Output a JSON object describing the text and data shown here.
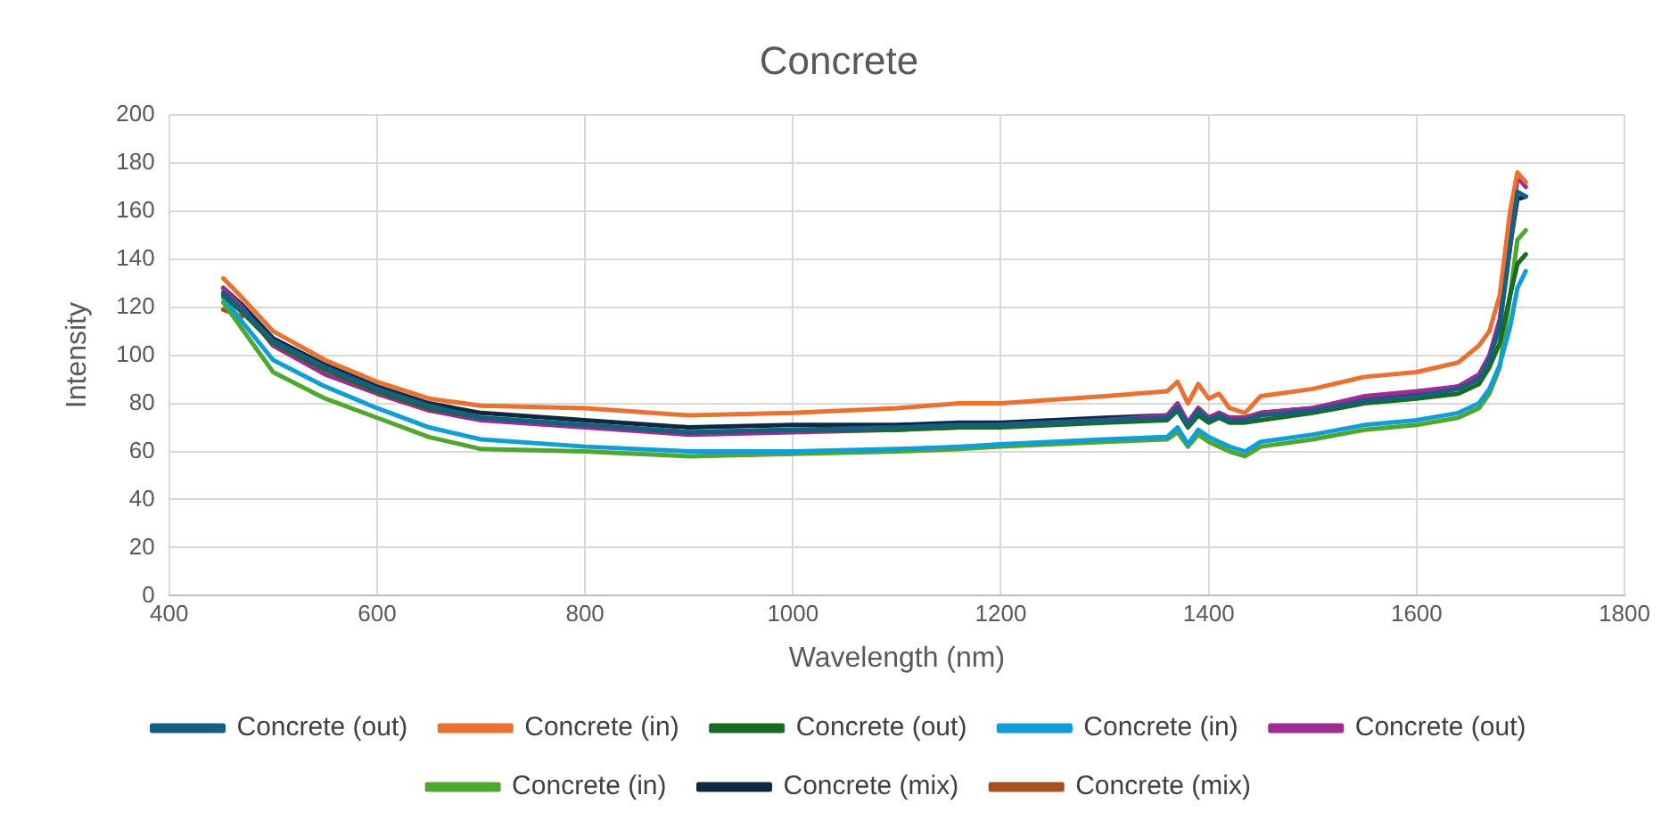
{
  "chart_data": {
    "type": "line",
    "title": "Concrete",
    "xlabel": "Wavelength (nm)",
    "ylabel": "Intensity",
    "x": [
      452,
      470,
      500,
      550,
      600,
      650,
      700,
      800,
      900,
      1000,
      1100,
      1160,
      1200,
      1300,
      1360,
      1370,
      1380,
      1390,
      1400,
      1410,
      1420,
      1435,
      1450,
      1500,
      1550,
      1600,
      1640,
      1660,
      1670,
      1680,
      1690,
      1697,
      1705
    ],
    "xlim": [
      400,
      1800
    ],
    "xticks": [
      400,
      600,
      800,
      1000,
      1200,
      1400,
      1600,
      1800
    ],
    "ylim": [
      0,
      200
    ],
    "yticks": [
      0,
      20,
      40,
      60,
      80,
      100,
      120,
      140,
      160,
      180,
      200
    ],
    "grid": true,
    "legend": "bottom",
    "marker": "none",
    "line_style": "solid",
    "series": [
      {
        "name": "Concrete (out)",
        "color": "#156082",
        "values": [
          126,
          119,
          106,
          95,
          86,
          79,
          74,
          71,
          68,
          69,
          70,
          71,
          71,
          73,
          74,
          78,
          71,
          77,
          73,
          75,
          73,
          73,
          75,
          77,
          81,
          83,
          86,
          90,
          98,
          112,
          145,
          168,
          166
        ]
      },
      {
        "name": "Concrete (in)",
        "color": "#e97132",
        "values": [
          132,
          124,
          110,
          98,
          89,
          82,
          79,
          78,
          75,
          76,
          78,
          80,
          80,
          83,
          85,
          89,
          80,
          88,
          82,
          84,
          78,
          76,
          83,
          86,
          91,
          93,
          97,
          104,
          110,
          125,
          160,
          176,
          172
        ]
      },
      {
        "name": "Concrete (out)",
        "color": "#196b24",
        "values": [
          125,
          118,
          105,
          94,
          85,
          78,
          74,
          71,
          68,
          69,
          69,
          70,
          70,
          72,
          73,
          77,
          70,
          75,
          72,
          74,
          72,
          72,
          73,
          76,
          80,
          82,
          84,
          88,
          95,
          105,
          125,
          138,
          142
        ]
      },
      {
        "name": "Concrete (in)",
        "color": "#0f9ed5",
        "values": [
          124,
          114,
          98,
          87,
          78,
          70,
          65,
          62,
          60,
          60,
          61,
          62,
          63,
          65,
          66,
          70,
          63,
          69,
          66,
          64,
          62,
          60,
          64,
          67,
          71,
          73,
          76,
          80,
          86,
          96,
          112,
          128,
          135
        ]
      },
      {
        "name": "Concrete (out)",
        "color": "#a02b93",
        "values": [
          128,
          120,
          104,
          92,
          84,
          77,
          73,
          70,
          67,
          68,
          69,
          70,
          71,
          73,
          75,
          80,
          72,
          78,
          74,
          76,
          74,
          74,
          76,
          78,
          83,
          85,
          87,
          92,
          100,
          115,
          150,
          174,
          170
        ]
      },
      {
        "name": "Concrete (in)",
        "color": "#4ea72e",
        "values": [
          122,
          111,
          93,
          82,
          74,
          66,
          61,
          60,
          58,
          59,
          60,
          61,
          62,
          64,
          65,
          68,
          62,
          67,
          64,
          62,
          60,
          58,
          62,
          65,
          69,
          71,
          74,
          78,
          84,
          95,
          125,
          148,
          152
        ]
      },
      {
        "name": "Concrete (mix)",
        "color": "#0e2841",
        "values": [
          128,
          121,
          107,
          96,
          87,
          80,
          76,
          73,
          70,
          71,
          71,
          72,
          72,
          74,
          75,
          79,
          72,
          78,
          74,
          76,
          74,
          74,
          76,
          78,
          82,
          84,
          87,
          91,
          99,
          113,
          146,
          165,
          166
        ]
      },
      {
        "name": "Concrete (mix)",
        "color": "#a5501c",
        "values": [
          119,
          116,
          null,
          null,
          null,
          null,
          null,
          null,
          null,
          null,
          null,
          null,
          null,
          null,
          null,
          null,
          null,
          null,
          null,
          null,
          null,
          null,
          null,
          null,
          null,
          null,
          null,
          null,
          null,
          null,
          null,
          null,
          null
        ]
      }
    ]
  }
}
